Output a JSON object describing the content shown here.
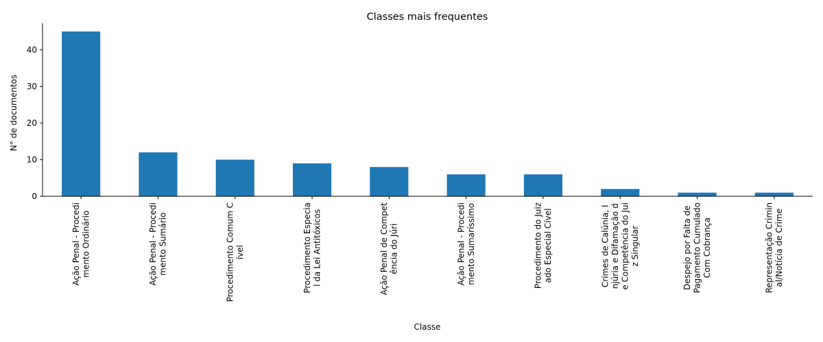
{
  "chart_data": {
    "type": "bar",
    "title": "Classes mais frequentes",
    "xlabel": "Classe",
    "ylabel": "N° de documentos",
    "ylim": [
      0,
      47.25
    ],
    "yticks": [
      0,
      10,
      20,
      30,
      40
    ],
    "grid": false,
    "bar_color": "#1f77b4",
    "categories": [
      [
        "Ação Penal - Procedi",
        "mento Ordinário"
      ],
      [
        "Ação Penal - Procedi",
        "mento Sumário"
      ],
      [
        "Procedimento Comum C",
        "ível"
      ],
      [
        "Procedimento Especia",
        "l da Lei Antitóxicos"
      ],
      [
        "Ação Penal de Compet",
        "ência do Júri"
      ],
      [
        "Ação Penal - Procedi",
        "mento Sumaríssimo"
      ],
      [
        "Procedimento do Juiz",
        "ado Especial Cível"
      ],
      [
        "Crimes de Calúnia, I",
        "njúria e Difamação d",
        "e Competência do Jui",
        "z Singular"
      ],
      [
        "Despejo por Falta de",
        "Pagamento Cumulado",
        "Com Cobrança"
      ],
      [
        "Representação Crimin",
        "al/Notícia de Crime"
      ]
    ],
    "values": [
      45,
      12,
      10,
      9,
      8,
      6,
      6,
      2,
      1,
      1
    ]
  }
}
